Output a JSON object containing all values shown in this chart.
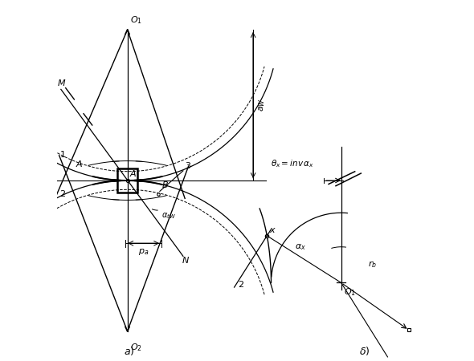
{
  "bg_color": "#ffffff",
  "line_color": "#000000",
  "fig_width": 5.9,
  "fig_height": 4.5,
  "dpi": 100
}
